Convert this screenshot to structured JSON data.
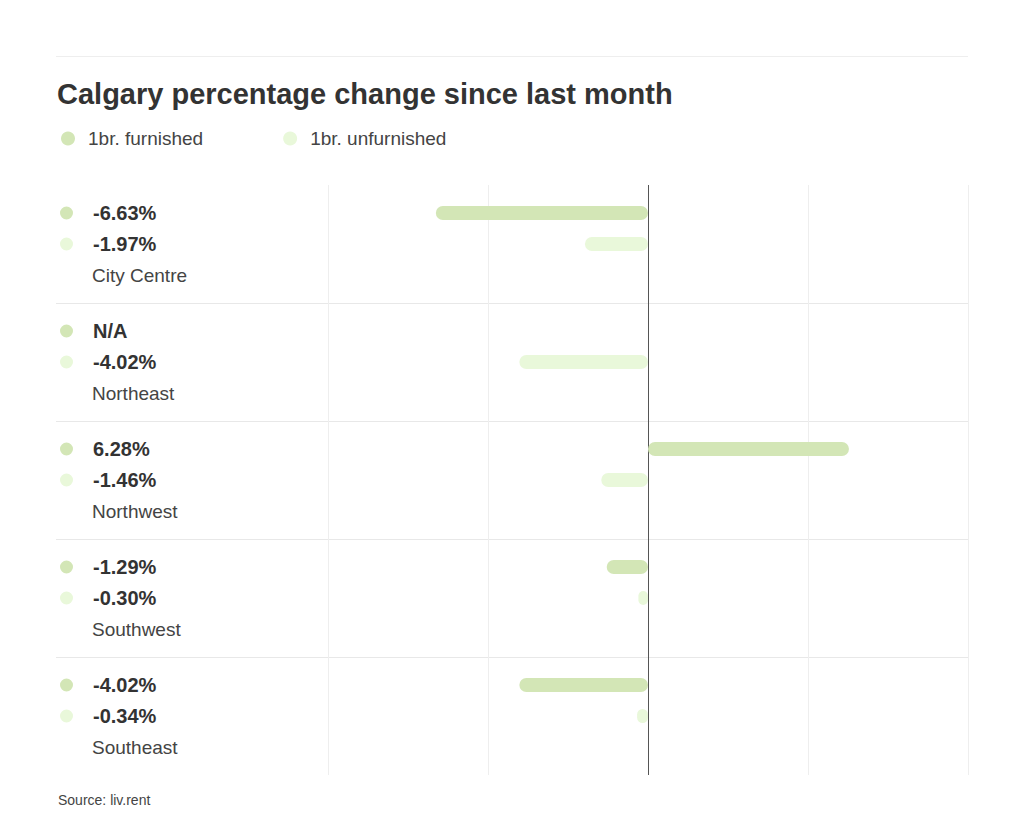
{
  "chart_data": {
    "type": "bar",
    "orientation": "horizontal",
    "title": "Calgary percentage change since last month",
    "source": "Source: liv.rent",
    "categories": [
      "City Centre",
      "Northeast",
      "Northwest",
      "Southwest",
      "Southeast"
    ],
    "series": [
      {
        "name": "1br. furnished",
        "color": "#d3e6b6",
        "values": [
          -6.63,
          null,
          6.28,
          -1.29,
          -4.02
        ],
        "value_labels": [
          "-6.63%",
          "N/A",
          "6.28%",
          "-1.29%",
          "-4.02%"
        ]
      },
      {
        "name": "1br. unfurnished",
        "color": "#e9f8da",
        "values": [
          -1.97,
          -4.02,
          -1.46,
          -0.3,
          -0.34
        ],
        "value_labels": [
          "-1.97%",
          "-4.02%",
          "-1.46%",
          "-0.30%",
          "-0.34%"
        ]
      }
    ],
    "xlim": [
      -10,
      10
    ],
    "xticks": [
      -10,
      -5,
      0,
      5,
      10
    ],
    "grid": true,
    "tick_labels": false,
    "data_labels": true,
    "legend": "top-left"
  }
}
